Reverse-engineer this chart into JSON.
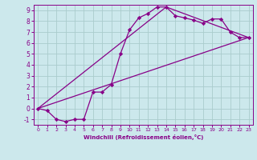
{
  "title": "",
  "xlabel": "Windchill (Refroidissement éolien,°C)",
  "bg_color": "#cce8ec",
  "grid_color": "#aacccc",
  "line_color": "#880088",
  "marker_color": "#880088",
  "xlim": [
    -0.5,
    23.5
  ],
  "ylim": [
    -1.5,
    9.5
  ],
  "xticks": [
    0,
    1,
    2,
    3,
    4,
    5,
    6,
    7,
    8,
    9,
    10,
    11,
    12,
    13,
    14,
    15,
    16,
    17,
    18,
    19,
    20,
    21,
    22,
    23
  ],
  "yticks": [
    -1,
    0,
    1,
    2,
    3,
    4,
    5,
    6,
    7,
    8,
    9
  ],
  "line1_x": [
    0,
    1,
    2,
    3,
    4,
    5,
    6,
    7,
    8,
    9,
    10,
    11,
    12,
    13,
    14,
    15,
    16,
    17,
    18,
    19,
    20,
    21,
    22,
    23
  ],
  "line1_y": [
    0,
    -0.2,
    -1.0,
    -1.2,
    -1.0,
    -1.0,
    1.5,
    1.5,
    2.2,
    5.0,
    7.2,
    8.3,
    8.7,
    9.3,
    9.3,
    8.5,
    8.3,
    8.1,
    7.8,
    8.2,
    8.2,
    7.0,
    6.5,
    6.5
  ],
  "line2_x": [
    0,
    23
  ],
  "line2_y": [
    0,
    6.5
  ],
  "line3_x": [
    0,
    14,
    23
  ],
  "line3_y": [
    0,
    9.3,
    6.5
  ]
}
